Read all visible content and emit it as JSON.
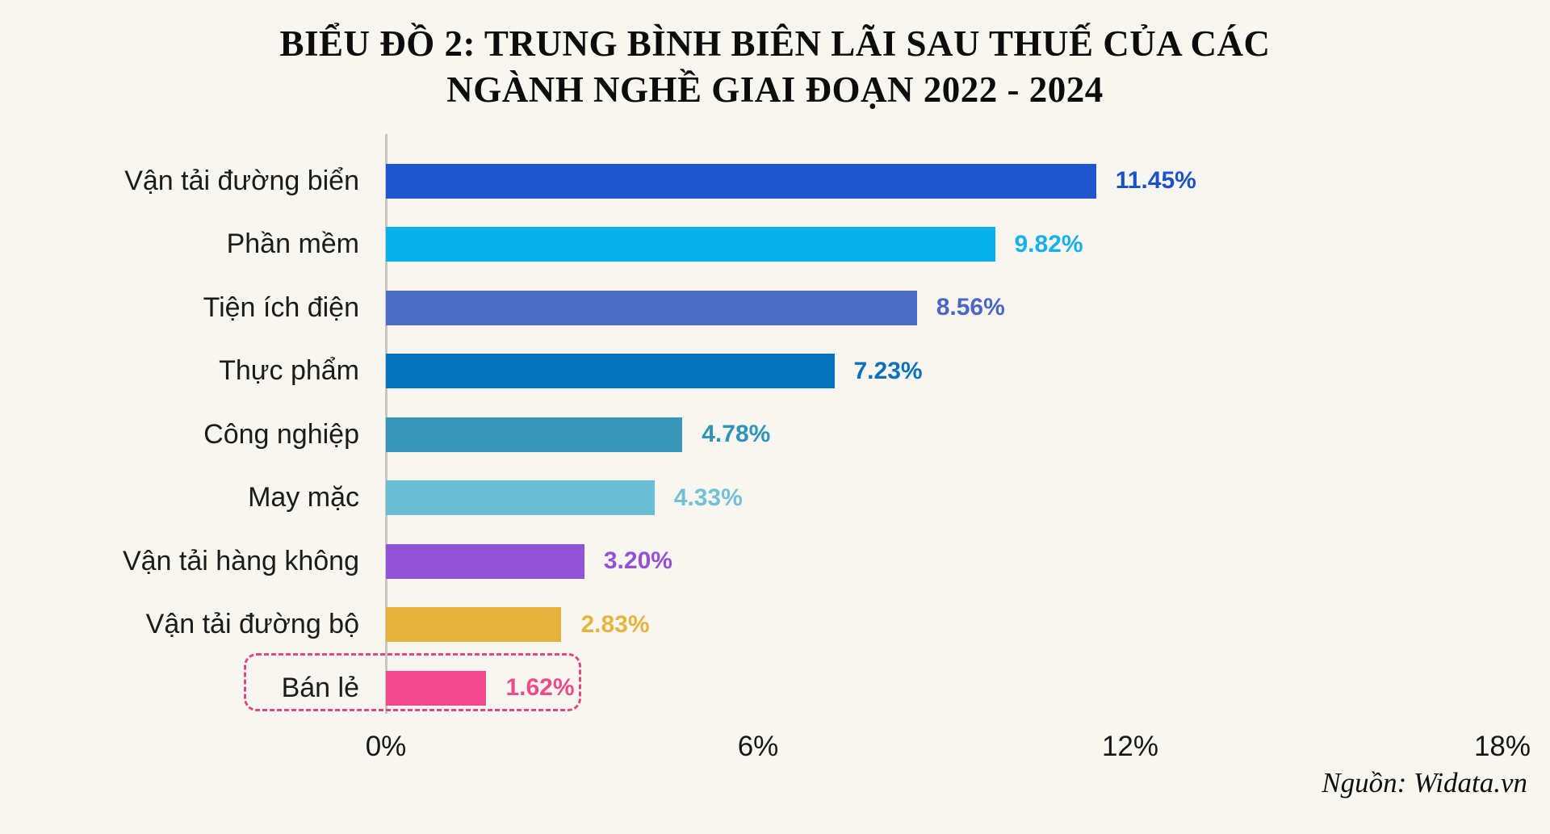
{
  "page": {
    "background": "#f8f6f0"
  },
  "title": {
    "line1": "BIỂU ĐỒ 2: TRUNG BÌNH BIÊN LÃI SAU THUẾ CỦA CÁC",
    "line2": "NGÀNH NGHỀ GIAI ĐOẠN 2022 - 2024"
  },
  "source": "Nguồn: Widata.vn",
  "chart_data": {
    "type": "bar",
    "orientation": "horizontal",
    "title": "BIỂU ĐỒ 2: TRUNG BÌNH BIÊN LÃI SAU THUẾ CỦA CÁC NGÀNH NGHỀ GIAI ĐOẠN 2022 - 2024",
    "categories": [
      "Vận tải đường biển",
      "Phần mềm",
      "Tiện ích điện",
      "Thực phẩm",
      "Công nghiệp",
      "May mặc",
      "Vận tải hàng không",
      "Vận tải đường bộ",
      "Bán lẻ"
    ],
    "values": [
      11.45,
      9.82,
      8.56,
      7.23,
      4.78,
      4.33,
      3.2,
      2.83,
      1.62
    ],
    "value_labels": [
      "11.45%",
      "9.82%",
      "8.56%",
      "7.23%",
      "4.78%",
      "4.33%",
      "3.20%",
      "2.83%",
      "1.62%"
    ],
    "bar_colors": [
      "#1e56d0",
      "#07b0ea",
      "#4c6cc6",
      "#0473bd",
      "#3a96b8",
      "#6abed3",
      "#9452d9",
      "#e7b23c",
      "#f2498c"
    ],
    "value_colors": [
      "#1c52c7",
      "#16b1e8",
      "#4b66c4",
      "#0b72b8",
      "#2f93ba",
      "#72c0d4",
      "#9650d8",
      "#e7b440",
      "#ee4b8b"
    ],
    "x_ticks": [
      {
        "value": 0,
        "label": "0%"
      },
      {
        "value": 6,
        "label": "6%"
      },
      {
        "value": 12,
        "label": "12%"
      },
      {
        "value": 18,
        "label": "18%"
      }
    ],
    "xlim": [
      0,
      18
    ],
    "grid": false,
    "legend": false,
    "highlighted_category": "Bán lẻ",
    "highlight_style": "dashed-pink-rounded-box",
    "source": "Nguồn: Widata.vn"
  }
}
